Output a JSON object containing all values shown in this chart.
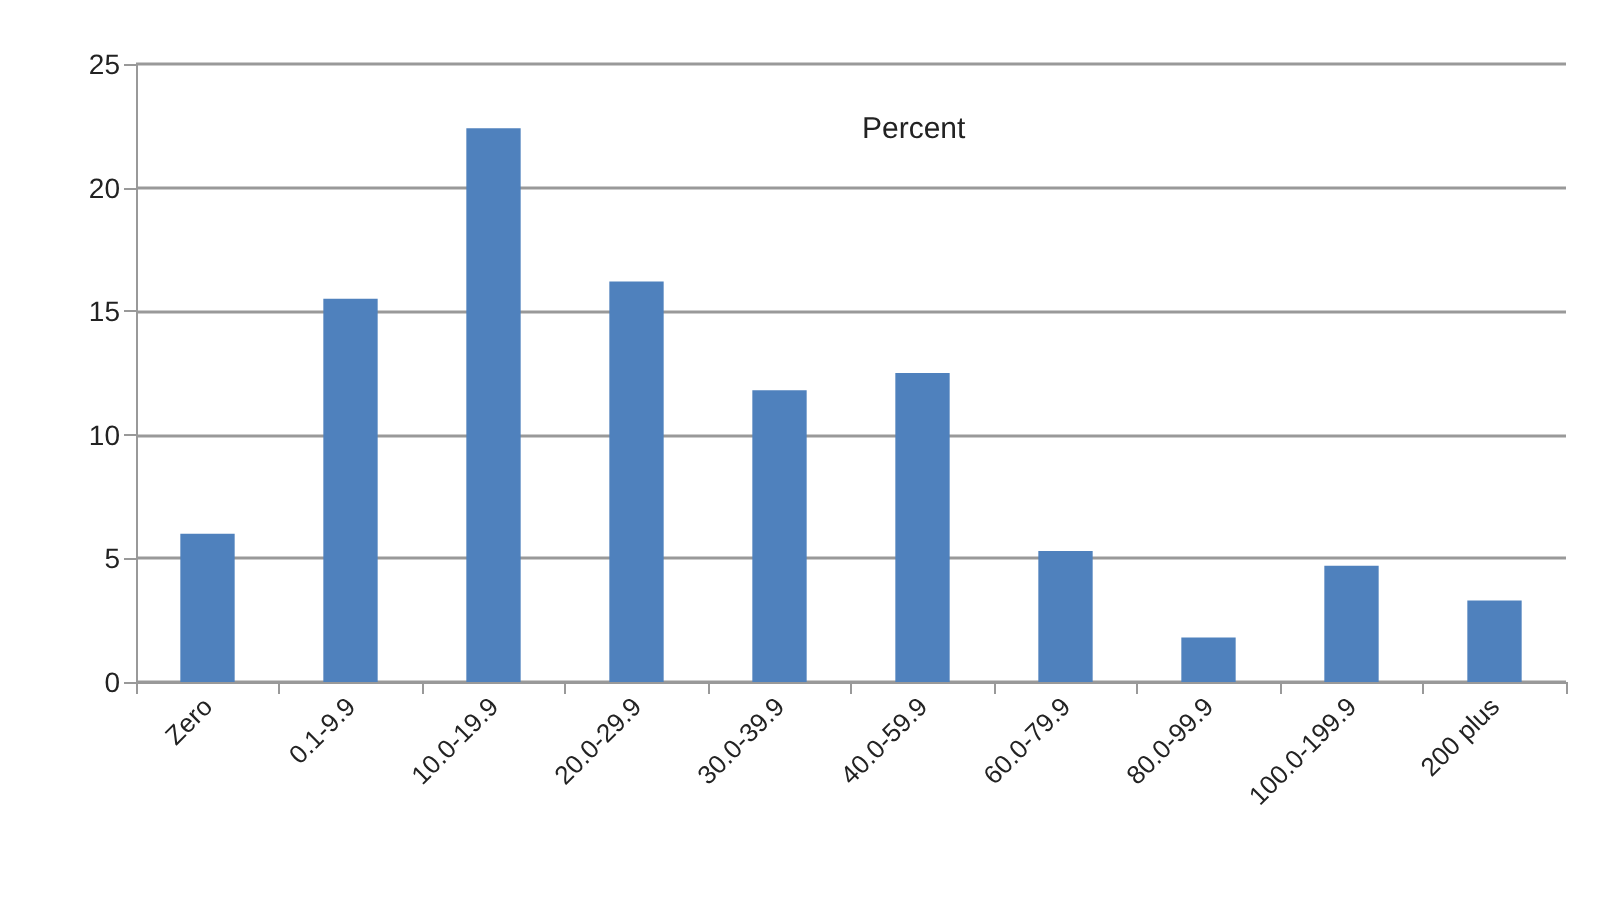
{
  "chart_data": {
    "type": "bar",
    "title": "Percent",
    "categories": [
      "Zero",
      "0.1-9.9",
      "10.0-19.9",
      "20.0-29.9",
      "30.0-39.9",
      "40.0-59.9",
      "60.0-79.9",
      "80.0-99.9",
      "100.0-199.9",
      "200 plus"
    ],
    "values": [
      6.0,
      15.5,
      22.4,
      16.2,
      11.8,
      12.5,
      5.3,
      1.8,
      4.7,
      3.3
    ],
    "color": "#4f81bd",
    "ylim": [
      0,
      25
    ],
    "yticks": [
      0,
      5,
      10,
      15,
      20,
      25
    ],
    "grid": "y"
  }
}
